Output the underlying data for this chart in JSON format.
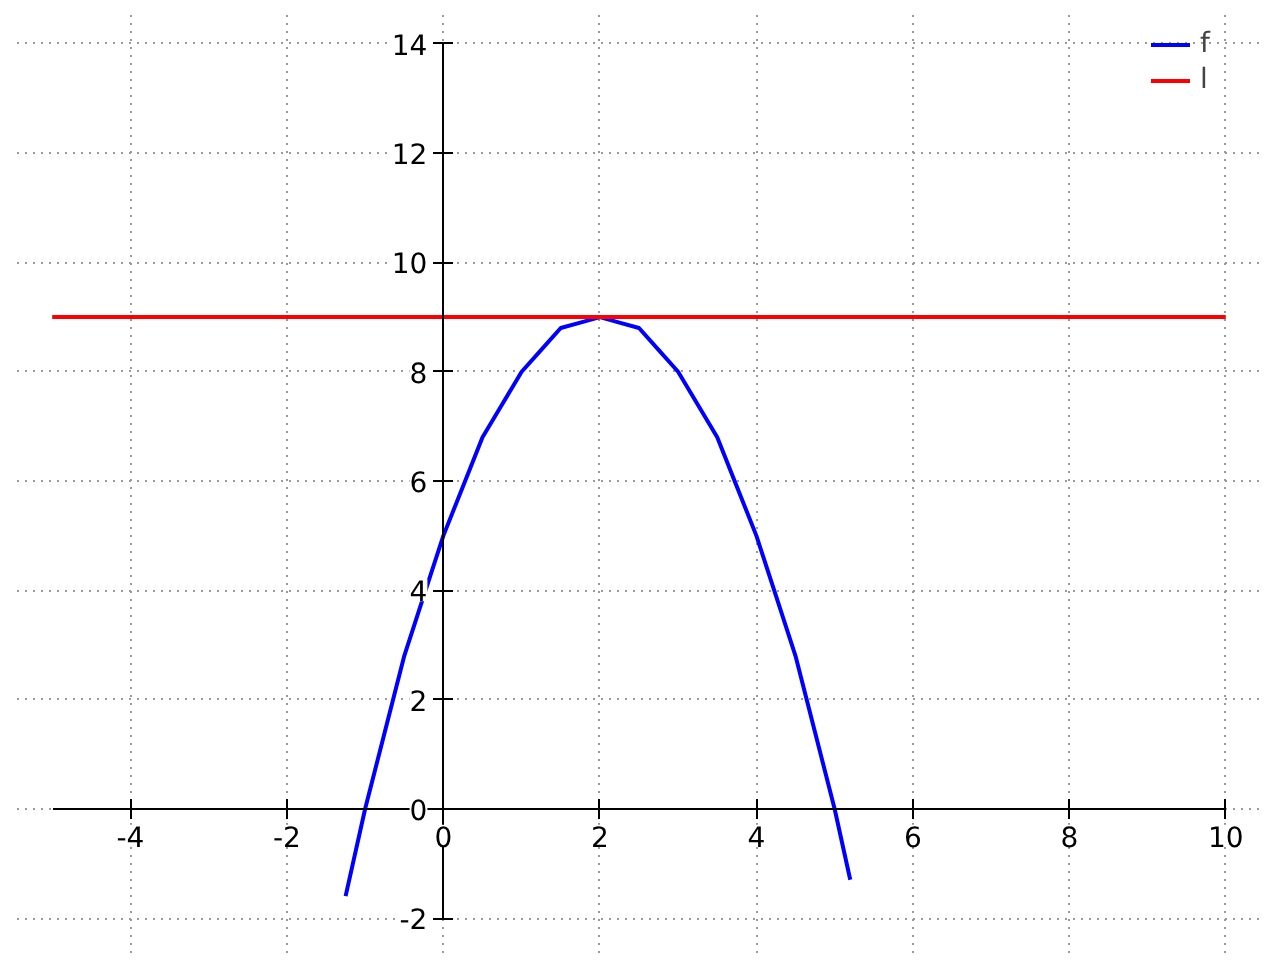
{
  "chart_data": {
    "type": "line",
    "series": [
      {
        "name": "f",
        "color": "#0000ff",
        "x": [
          -1.25,
          -1,
          -0.75,
          -0.5,
          -0.25,
          0,
          0.25,
          0.5,
          0.75,
          1,
          1.25,
          1.5,
          1.75,
          2,
          2.25,
          2.5,
          2.75,
          3,
          3.25,
          3.5,
          3.75,
          4,
          4.25,
          4.5,
          4.75,
          5,
          5.2
        ],
        "values": [
          -1.6,
          0,
          1.4,
          2.8,
          3.9,
          5,
          5.9,
          6.8,
          7.4,
          8,
          8.4,
          8.8,
          8.9,
          9,
          8.9,
          8.8,
          8.4,
          8,
          7.4,
          6.8,
          5.9,
          5,
          3.9,
          2.8,
          1.4,
          0,
          -1.3
        ]
      },
      {
        "name": "l",
        "color": "#ff0000",
        "x": [
          -5,
          10
        ],
        "values": [
          9,
          9
        ]
      }
    ],
    "xlim": [
      -5,
      10
    ],
    "ylim": [
      -2,
      14
    ],
    "xticks": [
      -4,
      -2,
      0,
      2,
      4,
      6,
      8,
      10
    ],
    "yticks": [
      -2,
      0,
      2,
      4,
      6,
      8,
      10,
      12,
      14
    ],
    "grid": true,
    "legend": "top right",
    "line_style": "solid"
  }
}
